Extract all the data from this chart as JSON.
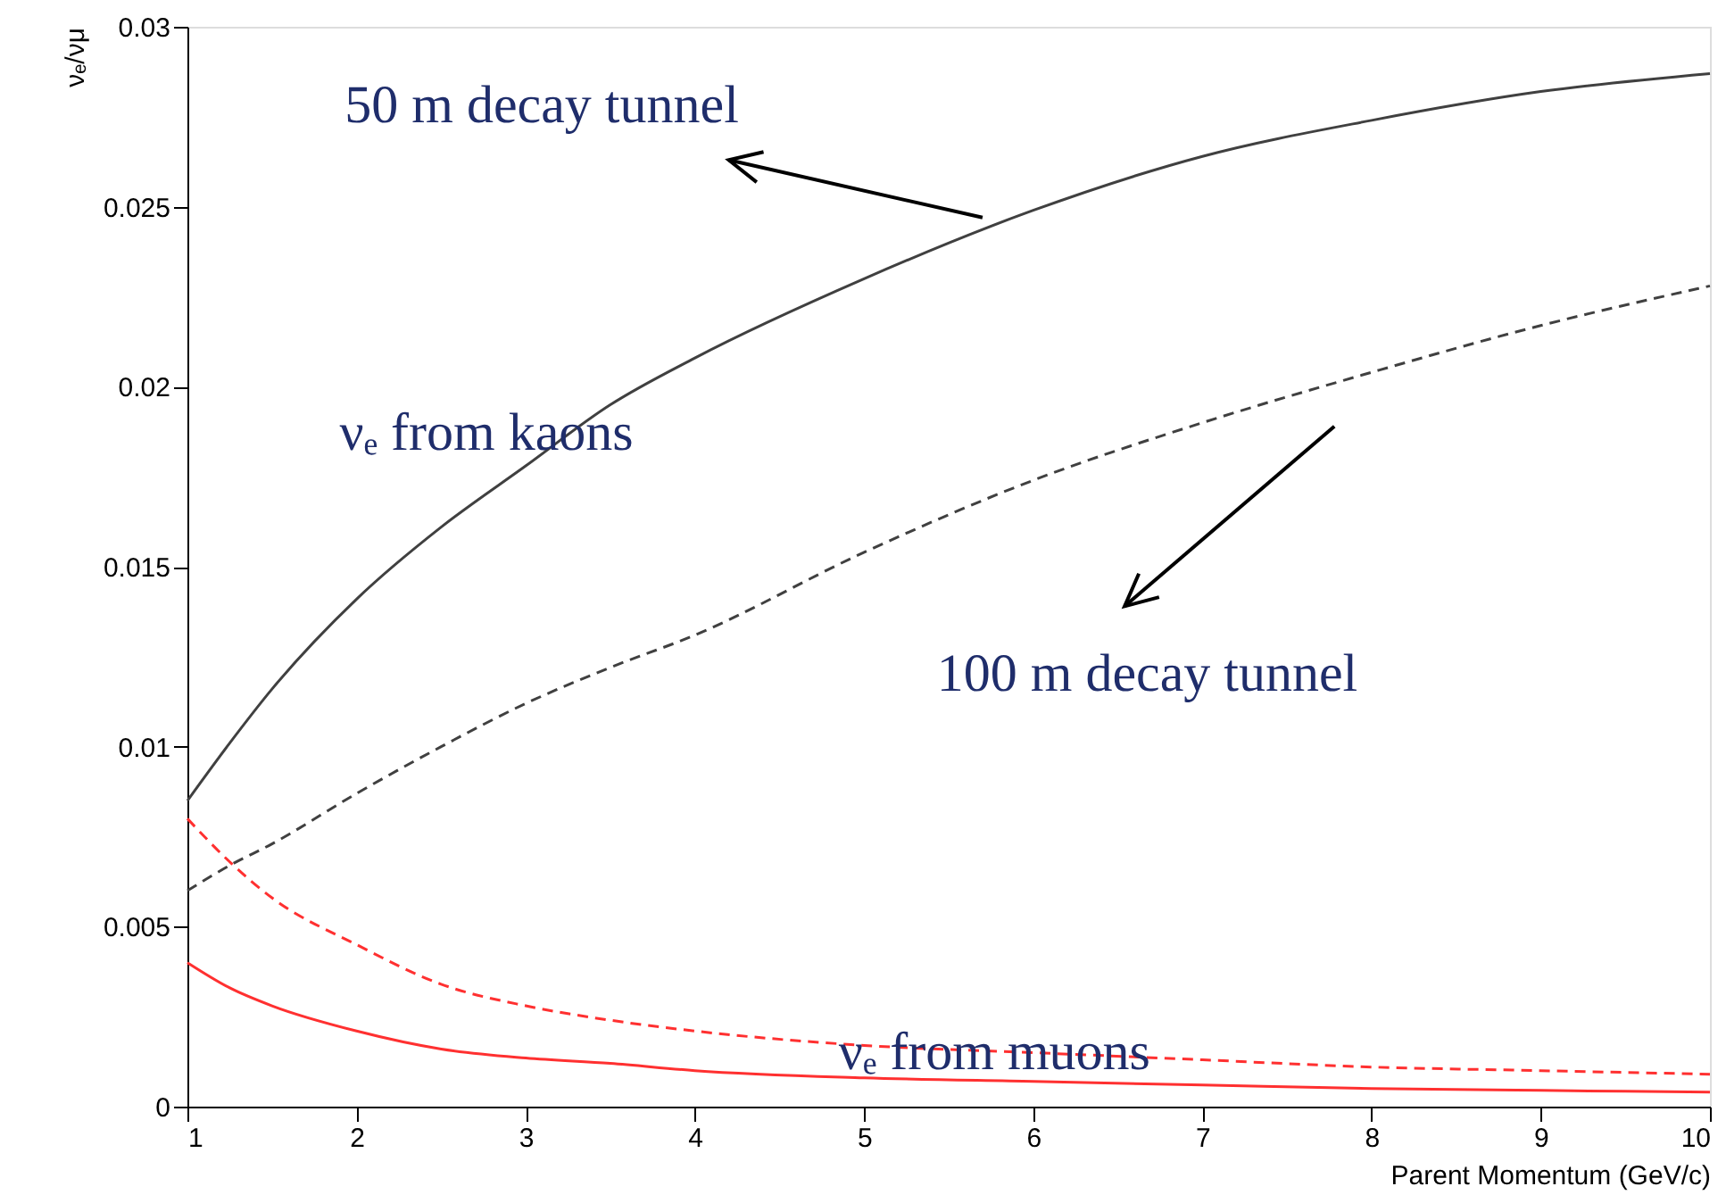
{
  "chart_data": {
    "type": "line",
    "xlabel": "Parent Momentum (GeV/c)",
    "ylabel": "νₑ/νμ",
    "x": [
      1,
      1.25,
      1.5,
      2,
      2.5,
      3,
      3.5,
      4,
      5,
      6,
      7,
      8,
      9,
      10
    ],
    "series": [
      {
        "color": "#404040",
        "line_style": "solid",
        "values": [
          0.0085,
          0.0101,
          0.0116,
          0.0141,
          0.0161,
          0.0178,
          0.0195,
          0.0208,
          0.023,
          0.0249,
          0.0264,
          0.0274,
          0.0282,
          0.0287
        ]
      },
      {
        "color": "#404040",
        "line_style": "dashed",
        "values": [
          0.006,
          0.0067,
          0.0073,
          0.0087,
          0.01,
          0.0112,
          0.0122,
          0.0131,
          0.0154,
          0.0174,
          0.019,
          0.0204,
          0.0217,
          0.0228
        ]
      },
      {
        "color": "#ff3030",
        "line_style": "dashed",
        "values": [
          0.008,
          0.0068,
          0.0058,
          0.0045,
          0.0034,
          0.0028,
          0.0024,
          0.0021,
          0.0017,
          0.0015,
          0.0013,
          0.0011,
          0.001,
          0.0009
        ]
      },
      {
        "color": "#ff3030",
        "line_style": "solid",
        "values": [
          0.004,
          0.0033,
          0.0028,
          0.0021,
          0.0016,
          0.00135,
          0.0012,
          0.001,
          0.0008,
          0.0007,
          0.0006,
          0.0005,
          0.00045,
          0.0004
        ]
      }
    ],
    "xlim": [
      1,
      10
    ],
    "ylim": [
      0,
      0.03
    ],
    "xticks": [
      1,
      2,
      3,
      4,
      5,
      6,
      7,
      8,
      9,
      10
    ],
    "yticks": [
      0,
      0.005,
      0.01,
      0.015,
      0.02,
      0.025,
      0.03
    ],
    "grid": false,
    "annotations": [
      "50 m decay tunnel",
      "νₑ from kaons",
      "100 m decay tunnel",
      "νₑ from muons"
    ]
  }
}
